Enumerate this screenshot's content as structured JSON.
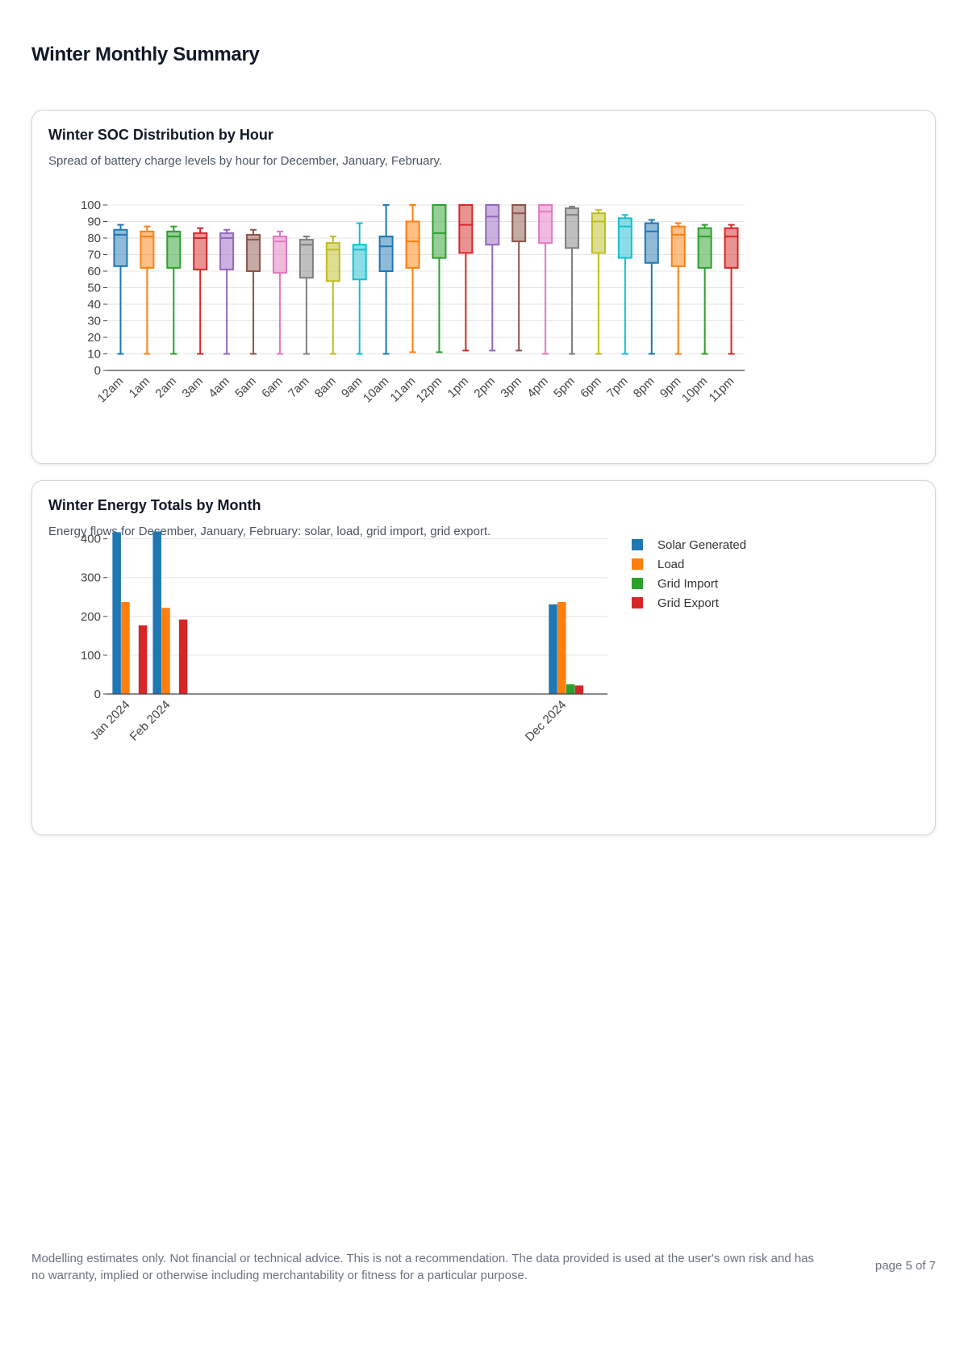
{
  "page": {
    "title": "Winter Monthly Summary",
    "disclaimer": "Modelling estimates only. Not financial or technical advice. This is not a recommendation. The data provided is used at the user's own risk and has no warranty, implied or otherwise including merchantability or fitness for a particular purpose.",
    "page_number": "page 5 of 7"
  },
  "cards": [
    {
      "title": "Winter SOC Distribution by Hour",
      "description": "Spread of battery charge levels by hour for December, January, February."
    },
    {
      "title": "Winter Energy Totals by Month",
      "description": "Energy flows for December, January, February: solar, load, grid import, grid export."
    }
  ],
  "chart_data": [
    {
      "type": "box",
      "title": "",
      "xlabel": "",
      "ylabel": "",
      "ylim": [
        0,
        100
      ],
      "yticks": [
        0,
        10,
        20,
        30,
        40,
        50,
        60,
        70,
        80,
        90,
        100
      ],
      "grid": true,
      "legend": "none",
      "palette": [
        "#1f77b4",
        "#ff7f0e",
        "#2ca02c",
        "#d62728",
        "#9467bd",
        "#8c564b",
        "#e377c2",
        "#7f7f7f",
        "#bcbd22",
        "#17becf"
      ],
      "boxes": [
        {
          "label": "12am",
          "min": 10,
          "q1": 63,
          "median": 82,
          "q3": 85,
          "max": 88
        },
        {
          "label": "1am",
          "min": 10,
          "q1": 62,
          "median": 81,
          "q3": 84,
          "max": 87
        },
        {
          "label": "2am",
          "min": 10,
          "q1": 62,
          "median": 81,
          "q3": 84,
          "max": 87
        },
        {
          "label": "3am",
          "min": 10,
          "q1": 61,
          "median": 80,
          "q3": 83,
          "max": 86
        },
        {
          "label": "4am",
          "min": 10,
          "q1": 61,
          "median": 80,
          "q3": 83,
          "max": 85
        },
        {
          "label": "5am",
          "min": 10,
          "q1": 60,
          "median": 79,
          "q3": 82,
          "max": 85
        },
        {
          "label": "6am",
          "min": 10,
          "q1": 59,
          "median": 78,
          "q3": 81,
          "max": 84
        },
        {
          "label": "7am",
          "min": 10,
          "q1": 56,
          "median": 76,
          "q3": 79,
          "max": 81
        },
        {
          "label": "8am",
          "min": 10,
          "q1": 54,
          "median": 73,
          "q3": 77,
          "max": 81
        },
        {
          "label": "9am",
          "min": 10,
          "q1": 55,
          "median": 73,
          "q3": 76,
          "max": 89
        },
        {
          "label": "10am",
          "min": 10,
          "q1": 60,
          "median": 75,
          "q3": 81,
          "max": 100
        },
        {
          "label": "11am",
          "min": 11,
          "q1": 62,
          "median": 78,
          "q3": 90,
          "max": 100
        },
        {
          "label": "12pm",
          "min": 11,
          "q1": 68,
          "median": 83,
          "q3": 100,
          "max": 100
        },
        {
          "label": "1pm",
          "min": 12,
          "q1": 71,
          "median": 88,
          "q3": 100,
          "max": 100
        },
        {
          "label": "2pm",
          "min": 12,
          "q1": 76,
          "median": 93,
          "q3": 100,
          "max": 100
        },
        {
          "label": "3pm",
          "min": 12,
          "q1": 78,
          "median": 95,
          "q3": 100,
          "max": 100
        },
        {
          "label": "4pm",
          "min": 10,
          "q1": 77,
          "median": 96,
          "q3": 100,
          "max": 100
        },
        {
          "label": "5pm",
          "min": 10,
          "q1": 74,
          "median": 94,
          "q3": 98,
          "max": 99
        },
        {
          "label": "6pm",
          "min": 10,
          "q1": 71,
          "median": 90,
          "q3": 95,
          "max": 97
        },
        {
          "label": "7pm",
          "min": 10,
          "q1": 68,
          "median": 87,
          "q3": 92,
          "max": 94
        },
        {
          "label": "8pm",
          "min": 10,
          "q1": 65,
          "median": 84,
          "q3": 89,
          "max": 91
        },
        {
          "label": "9pm",
          "min": 10,
          "q1": 63,
          "median": 82,
          "q3": 87,
          "max": 89
        },
        {
          "label": "10pm",
          "min": 10,
          "q1": 62,
          "median": 81,
          "q3": 86,
          "max": 88
        },
        {
          "label": "11pm",
          "min": 10,
          "q1": 62,
          "median": 81,
          "q3": 86,
          "max": 88
        }
      ]
    },
    {
      "type": "bar",
      "title": "",
      "xlabel": "",
      "ylabel": "",
      "x_axis": "date",
      "x_range": [
        "2023-12-18",
        "2025-01-05"
      ],
      "ylim": [
        0,
        420
      ],
      "yticks": [
        0,
        100,
        200,
        300,
        400
      ],
      "grid": true,
      "legend": "right",
      "categories": [
        "Jan 2024",
        "Feb 2024",
        "Dec 2024"
      ],
      "series": [
        {
          "name": "Solar Generated",
          "color": "#1f77b4",
          "values": [
            417,
            419,
            231
          ]
        },
        {
          "name": "Load",
          "color": "#ff7f0e",
          "values": [
            237,
            222,
            237
          ]
        },
        {
          "name": "Grid Import",
          "color": "#2ca02c",
          "values": [
            0,
            0,
            25
          ]
        },
        {
          "name": "Grid Export",
          "color": "#d62728",
          "values": [
            177,
            192,
            22
          ]
        }
      ]
    }
  ]
}
